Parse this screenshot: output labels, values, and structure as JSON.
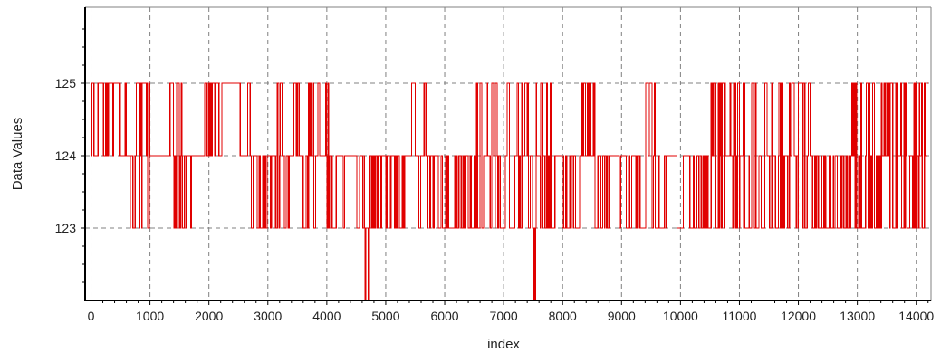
{
  "chart_data": {
    "type": "line",
    "title": "",
    "xlabel": "index",
    "ylabel": "Data Values",
    "xlim": [
      -100,
      14250
    ],
    "ylim": [
      122.0,
      126.05
    ],
    "x_ticks": [
      0,
      1000,
      2000,
      3000,
      4000,
      5000,
      6000,
      7000,
      8000,
      9000,
      10000,
      11000,
      12000,
      13000,
      14000
    ],
    "y_ticks": [
      123,
      124,
      125
    ],
    "grid": true,
    "legend": "none",
    "colors": {
      "series": "#e00000",
      "grid": "#808080",
      "axis": "#000000"
    },
    "series": [
      {
        "x_step": 10,
        "x_start": 0,
        "n_points": 1421,
        "value_levels": [
          122,
          123,
          124,
          125
        ],
        "typical_value": 124,
        "dips": [
          {
            "x": 4650,
            "value": 122.0
          },
          {
            "x": 4700,
            "value": 122.0
          },
          {
            "x": 7500,
            "value": 122.0
          },
          {
            "x": 7530,
            "value": 122.0
          }
        ],
        "segments": [
          {
            "x0": 0,
            "x1": 500,
            "levels": [
              124,
              125
            ],
            "switch": 0.55
          },
          {
            "x0": 500,
            "x1": 1000,
            "levels": [
              123,
              124,
              125
            ],
            "switch": 0.5
          },
          {
            "x0": 1000,
            "x1": 1300,
            "levels": [
              124
            ],
            "switch": 0.05
          },
          {
            "x0": 1300,
            "x1": 1700,
            "levels": [
              123,
              124,
              125
            ],
            "switch": 0.4
          },
          {
            "x0": 1700,
            "x1": 1900,
            "levels": [
              124
            ],
            "switch": 0.05
          },
          {
            "x0": 1900,
            "x1": 2250,
            "levels": [
              124,
              125
            ],
            "switch": 0.6
          },
          {
            "x0": 2250,
            "x1": 2700,
            "levels": [
              124,
              125
            ],
            "switch": 0.08
          },
          {
            "x0": 2700,
            "x1": 3150,
            "levels": [
              123,
              124
            ],
            "switch": 0.55
          },
          {
            "x0": 3150,
            "x1": 4100,
            "levels": [
              123,
              124,
              125
            ],
            "switch": 0.6
          },
          {
            "x0": 4100,
            "x1": 4600,
            "levels": [
              123,
              124
            ],
            "switch": 0.5
          },
          {
            "x0": 4600,
            "x1": 5400,
            "levels": [
              123,
              124
            ],
            "switch": 0.7
          },
          {
            "x0": 5400,
            "x1": 5700,
            "levels": [
              123,
              124,
              125
            ],
            "switch": 0.4
          },
          {
            "x0": 5700,
            "x1": 6500,
            "levels": [
              123,
              124
            ],
            "switch": 0.6
          },
          {
            "x0": 6500,
            "x1": 7000,
            "levels": [
              123,
              124,
              125
            ],
            "switch": 0.6
          },
          {
            "x0": 7000,
            "x1": 7800,
            "levels": [
              123,
              124,
              125
            ],
            "switch": 0.55
          },
          {
            "x0": 7800,
            "x1": 8300,
            "levels": [
              123,
              124
            ],
            "switch": 0.5
          },
          {
            "x0": 8300,
            "x1": 8550,
            "levels": [
              124,
              125
            ],
            "switch": 0.9
          },
          {
            "x0": 8550,
            "x1": 9300,
            "levels": [
              123,
              124
            ],
            "switch": 0.55
          },
          {
            "x0": 9300,
            "x1": 9600,
            "levels": [
              123,
              124,
              125
            ],
            "switch": 0.5
          },
          {
            "x0": 9600,
            "x1": 10500,
            "levels": [
              123,
              124
            ],
            "switch": 0.5
          },
          {
            "x0": 10500,
            "x1": 11300,
            "levels": [
              123,
              124,
              125
            ],
            "switch": 0.65
          },
          {
            "x0": 11300,
            "x1": 12200,
            "levels": [
              123,
              124,
              125
            ],
            "switch": 0.45
          },
          {
            "x0": 12200,
            "x1": 12900,
            "levels": [
              123,
              124
            ],
            "switch": 0.6
          },
          {
            "x0": 12900,
            "x1": 14200,
            "levels": [
              123,
              124,
              125
            ],
            "switch": 0.6
          }
        ]
      }
    ]
  }
}
